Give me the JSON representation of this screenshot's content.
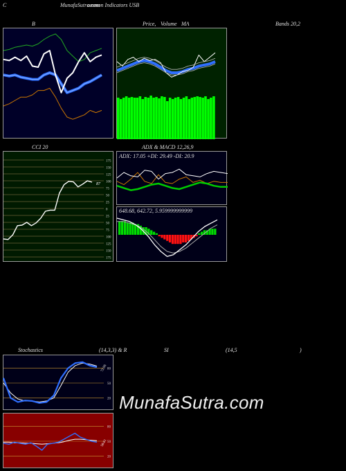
{
  "header": {
    "corner": "C",
    "site_title": "MunafaSutra.com",
    "indicator_title": "ommon Indicators USB"
  },
  "labels": {
    "bb_left": "B",
    "bb_mid1": "Price,",
    "bb_mid2": "Volume",
    "bb_mid3": "MA",
    "bb_right": "Bands 20,2",
    "cci_title": "CCI 20",
    "adx_title": "ADX  & MACD 12,26,9",
    "adx_readout": "ADX: 17.05  +DI: 29.49 -DI: 20.9",
    "macd_readout": "648.68,  642.72,  5.959999999999",
    "stoch_left": "Stochastics",
    "stoch_mid": "(14,3,3) & R",
    "stoch_si": "SI",
    "stoch_right": "(14,5",
    "stoch_paren": ")",
    "watermark": "MunafaSutra.com"
  },
  "colors": {
    "bb_bg": "#000028",
    "vol_bg": "#002200",
    "cci_bg": "#001a00",
    "macd_bg": "#000018",
    "rsi_bg": "#880000"
  },
  "chart_data": [
    {
      "type": "line",
      "panel": "bollinger",
      "series": [
        {
          "values": [
            72,
            71,
            74,
            71,
            75,
            66,
            65,
            77,
            80,
            58,
            42,
            55,
            60,
            70,
            78,
            70,
            74,
            76
          ]
        },
        {
          "values": [
            58,
            57,
            58,
            56,
            55,
            54,
            54,
            58,
            60,
            58,
            50,
            42,
            44,
            46,
            50,
            52,
            55,
            58
          ]
        },
        {
          "values": [
            80,
            81,
            83,
            84,
            85,
            84,
            86,
            90,
            93,
            95,
            90,
            80,
            75,
            70,
            72,
            78,
            80,
            82
          ]
        },
        {
          "values": [
            30,
            32,
            35,
            38,
            38,
            40,
            44,
            44,
            46,
            38,
            28,
            20,
            18,
            20,
            22,
            26,
            24,
            26
          ]
        }
      ]
    },
    {
      "type": "bar+line",
      "panel": "price-volume",
      "volume": [
        60,
        58,
        60,
        62,
        60,
        61,
        60,
        60,
        62,
        58,
        61,
        60,
        63,
        60,
        61,
        59,
        62,
        61,
        55,
        60,
        58,
        60,
        61,
        58,
        60,
        62,
        58,
        60,
        61,
        62,
        61,
        60,
        62,
        58,
        60,
        62
      ],
      "series": [
        {
          "values": [
            70,
            66,
            72,
            74,
            70,
            73,
            71,
            72,
            69,
            60,
            56,
            58,
            61,
            62,
            65,
            76,
            70,
            74,
            78
          ]
        },
        {
          "values": [
            62,
            64,
            66,
            68,
            70,
            71,
            70,
            68,
            65,
            62,
            60,
            60,
            61,
            63,
            64,
            66,
            67,
            68,
            70
          ]
        }
      ]
    },
    {
      "type": "line",
      "panel": "cci",
      "ylim": [
        -175,
        175
      ],
      "tick_labels": [
        "175",
        "150",
        "125",
        "100",
        "75",
        "50",
        "25",
        "0",
        "25",
        "50",
        "75",
        "100",
        "125",
        "150",
        "175"
      ],
      "current_label": "87",
      "values": [
        -110,
        -112,
        -95,
        -62,
        -60,
        -50,
        -62,
        -52,
        -35,
        -10,
        -6,
        -6,
        55,
        86,
        98,
        96,
        78,
        88,
        100,
        95
      ]
    },
    {
      "type": "line",
      "panel": "adx",
      "series": [
        {
          "name": "ADX",
          "values": [
            18,
            16,
            14,
            15,
            17,
            19,
            20,
            18,
            16,
            15,
            17,
            19,
            21,
            20,
            18,
            17,
            17
          ]
        },
        {
          "name": "+DI",
          "values": [
            25,
            30,
            27,
            26,
            32,
            31,
            24,
            29,
            30,
            33,
            28,
            27,
            26,
            29,
            31,
            30,
            29
          ]
        },
        {
          "name": "-DI",
          "values": [
            22,
            19,
            24,
            30,
            22,
            20,
            28,
            21,
            20,
            24,
            26,
            21,
            23,
            20,
            22,
            21,
            21
          ]
        }
      ]
    },
    {
      "type": "line+bar",
      "panel": "macd",
      "series": [
        {
          "name": "MACD",
          "values": [
            10,
            9,
            8,
            6,
            3,
            -1,
            -6,
            -10,
            -13,
            -12,
            -9,
            -6,
            -2,
            2,
            5,
            7,
            9
          ]
        },
        {
          "name": "Signal",
          "values": [
            8,
            8,
            7,
            6,
            4,
            1,
            -3,
            -7,
            -10,
            -11,
            -10,
            -8,
            -5,
            -2,
            1,
            4,
            6
          ]
        }
      ],
      "histogram": [
        9,
        9,
        9,
        8,
        8,
        8,
        7,
        7,
        6,
        5,
        5,
        4,
        3,
        2,
        1,
        -1,
        -2,
        -3,
        -4,
        -5,
        -6,
        -6,
        -6,
        -6,
        -5,
        -5,
        -4,
        -3,
        -2,
        -1,
        1,
        2,
        3,
        3,
        4,
        4,
        4
      ]
    },
    {
      "type": "line",
      "panel": "stochastics",
      "ylim": [
        0,
        100
      ],
      "tick_labels": [
        "80",
        "50",
        "20"
      ],
      "current_label": "72.95",
      "series": [
        {
          "name": "%K",
          "values": [
            60,
            20,
            12,
            15,
            14,
            10,
            12,
            25,
            60,
            80,
            90,
            92,
            85,
            82
          ]
        },
        {
          "name": "%D",
          "values": [
            50,
            30,
            18,
            14,
            14,
            12,
            14,
            20,
            45,
            72,
            85,
            90,
            88,
            84
          ]
        }
      ]
    },
    {
      "type": "line",
      "panel": "rsi",
      "ylim": [
        0,
        100
      ],
      "tick_labels": [
        "80",
        "50",
        "20"
      ],
      "current_label": "58.61",
      "series": [
        {
          "name": "RSI",
          "values": [
            46,
            44,
            48,
            46,
            44,
            47,
            40,
            32,
            44,
            46,
            48,
            54,
            60,
            66,
            58,
            54,
            50,
            48
          ]
        },
        {
          "name": "MA",
          "values": [
            48,
            48,
            47,
            47,
            46,
            46,
            45,
            44,
            45,
            46,
            47,
            49,
            52,
            54,
            54,
            53,
            52,
            51
          ]
        }
      ]
    }
  ]
}
